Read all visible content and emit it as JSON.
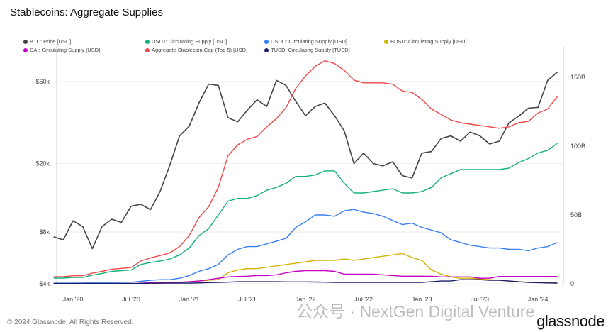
{
  "footer": {
    "copyright": "© 2024 Glassnode. All Rights Reserved.",
    "logo": "glassnode",
    "watermark": "公众号 · NextGen Digital Venture"
  },
  "chart_data": {
    "type": "line",
    "title": "Stablecoins: Aggregate Supplies",
    "x_start": "Nov 2019",
    "x_step": "month",
    "xticks": [
      "Jan '20",
      "Jul '20",
      "Jan '21",
      "Jul '21",
      "Jan '22",
      "Jul '22",
      "Jan '23",
      "Jul '23",
      "Jan '24"
    ],
    "xtick_index": [
      2,
      8,
      14,
      20,
      26,
      32,
      38,
      44,
      50
    ],
    "left_axis": {
      "scale": "log",
      "ticks": [
        "$4k",
        "$8k",
        "$20k",
        "$60k"
      ],
      "tick_values": [
        4000,
        8000,
        20000,
        60000
      ],
      "range": [
        4000,
        60000
      ]
    },
    "right_axis": {
      "scale": "linear",
      "ticks": [
        "0",
        "50B",
        "100B",
        "150B"
      ],
      "tick_values": [
        0,
        50,
        100,
        150
      ],
      "range": [
        0,
        175
      ]
    },
    "legend_placement": "top-left",
    "series": [
      {
        "name": "BTC: Price [USD]",
        "axis": "left",
        "color": "#444444",
        "values": [
          7500,
          7200,
          9300,
          8600,
          6400,
          8600,
          9500,
          9100,
          11300,
          11600,
          10800,
          13800,
          19600,
          29000,
          33000,
          45000,
          58000,
          57000,
          37000,
          35000,
          41000,
          47000,
          43000,
          61000,
          57000,
          46000,
          38000,
          43000,
          45000,
          38000,
          31000,
          20000,
          23000,
          20000,
          19400,
          20500,
          17000,
          16500,
          23000,
          23500,
          28000,
          29000,
          27000,
          30500,
          29000,
          26000,
          27000,
          34500,
          37700,
          42000,
          42500,
          61000,
          68000
        ]
      },
      {
        "name": "USDT: Circulating Supply [USD]",
        "axis": "right",
        "color": "#16b07a",
        "values": [
          4.1,
          4.1,
          4.6,
          4.6,
          6.3,
          7.5,
          9,
          9.5,
          10,
          14,
          15.5,
          16.5,
          18,
          21,
          26,
          35,
          40,
          50,
          60,
          62,
          62,
          64,
          68,
          70,
          73,
          78,
          78,
          79,
          82,
          82,
          73,
          66,
          66,
          67,
          68,
          69,
          66,
          66,
          67,
          70,
          77,
          80,
          83,
          83,
          83,
          83,
          83,
          84,
          88,
          91,
          95,
          97,
          102
        ]
      },
      {
        "name": "USDC: Circulating Supply [USD]",
        "axis": "right",
        "color": "#3b7ff5",
        "values": [
          0.5,
          0.5,
          0.5,
          0.6,
          0.7,
          0.8,
          0.8,
          1.0,
          1.1,
          1.8,
          2.5,
          3,
          3,
          4,
          6,
          9,
          11,
          14,
          21,
          25,
          27,
          27,
          29,
          31,
          33,
          41,
          45,
          50,
          50,
          49,
          53,
          54,
          52,
          51,
          49,
          46,
          43,
          44,
          41,
          39,
          37,
          32,
          30,
          28,
          27,
          26,
          26,
          25,
          25,
          24,
          26,
          27,
          30
        ]
      },
      {
        "name": "BUSD: Circulating Supply [USD]",
        "axis": "right",
        "color": "#d4b300",
        "values": [
          0.2,
          0.2,
          0.2,
          0.2,
          0.2,
          0.2,
          0.2,
          0.2,
          0.2,
          0.2,
          0.3,
          0.5,
          0.6,
          1,
          1.5,
          2,
          2.5,
          3,
          8,
          10,
          11,
          11,
          12,
          13,
          14,
          15,
          16,
          17,
          17,
          17,
          18,
          17,
          18,
          19,
          20,
          21,
          22,
          19,
          17,
          10,
          7,
          5,
          4,
          4,
          3.5,
          3,
          2.5,
          2,
          1.5,
          1.2,
          1,
          0.9,
          0.8
        ]
      },
      {
        "name": "DAI: Circulating Supply [USD]",
        "axis": "right",
        "color": "#c400c4",
        "values": [
          0.1,
          0.1,
          0.1,
          0.1,
          0.1,
          0.1,
          0.1,
          0.1,
          0.1,
          0.4,
          0.8,
          0.9,
          1,
          1.2,
          1.5,
          2,
          3,
          4,
          5,
          5.3,
          5.5,
          6,
          6,
          6.5,
          8,
          9,
          9.5,
          9.5,
          9.5,
          9,
          7,
          7,
          7,
          7,
          6.5,
          6,
          5.5,
          5.5,
          5.5,
          5.4,
          5,
          5,
          5,
          5,
          4,
          4,
          5.3,
          5.3,
          5.3,
          5.3,
          5.3,
          5.3,
          5.3
        ]
      },
      {
        "name": "Aggregate Stablecoin Cap (Top 5) [USD]",
        "axis": "right",
        "color": "#f04848",
        "values": [
          5.2,
          5.2,
          5.8,
          5.9,
          7.7,
          9,
          10.5,
          11.2,
          11.8,
          16.5,
          18.8,
          20.5,
          22.5,
          27,
          35,
          48,
          56,
          70,
          93,
          101,
          105,
          107,
          114,
          120,
          128,
          142,
          151,
          158,
          162,
          160,
          155,
          148,
          146,
          146,
          146,
          145,
          140,
          139,
          134,
          127,
          123,
          119,
          117,
          116,
          115,
          114,
          113,
          114,
          117,
          118,
          124,
          127,
          136
        ]
      },
      {
        "name": "TUSD: Circulating Supply [TUSD]",
        "axis": "right",
        "color": "#1c1c6e",
        "values": [
          0.15,
          0.15,
          0.15,
          0.15,
          0.15,
          0.15,
          0.15,
          0.15,
          0.15,
          0.3,
          0.4,
          0.4,
          0.5,
          0.5,
          0.5,
          0.6,
          0.9,
          1,
          1.2,
          1.5,
          1.5,
          1.5,
          1.5,
          1.5,
          1.4,
          1.4,
          1.4,
          1.3,
          1.2,
          1,
          1,
          1,
          1,
          1,
          1,
          1,
          1,
          1,
          1,
          1.5,
          2,
          2,
          3,
          3,
          3,
          2.5,
          2.5,
          2,
          1.5,
          1,
          0.8,
          0.6,
          0.5
        ]
      }
    ]
  }
}
